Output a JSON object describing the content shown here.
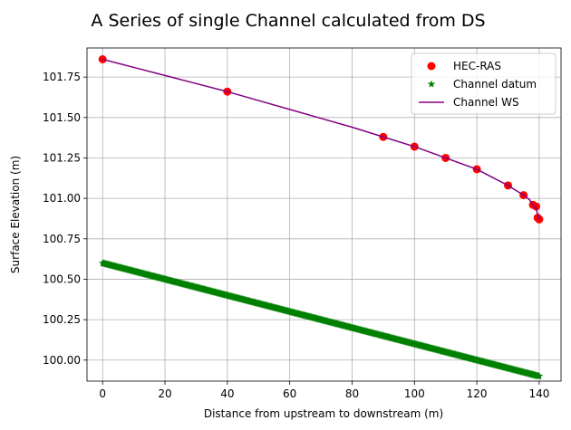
{
  "chart_data": {
    "type": "scatter",
    "title": "A Series of single Channel calculated from DS",
    "xlabel": "Distance from upstream to downstream (m)",
    "ylabel": "Surface Elevation (m)",
    "xlim": [
      -5,
      147
    ],
    "ylim": [
      99.87,
      101.93
    ],
    "xticks": [
      0,
      20,
      40,
      60,
      80,
      100,
      120,
      140
    ],
    "yticks": [
      100.0,
      100.25,
      100.5,
      100.75,
      101.0,
      101.25,
      101.5,
      101.75
    ],
    "xtick_labels": [
      "0",
      "20",
      "40",
      "60",
      "80",
      "100",
      "120",
      "140"
    ],
    "ytick_labels": [
      "100.00",
      "100.25",
      "100.50",
      "100.75",
      "101.00",
      "101.25",
      "101.50",
      "101.75"
    ],
    "grid": true,
    "legend_position": "top-right",
    "series": [
      {
        "name": "HEC-RAS",
        "kind": "scatter",
        "marker": "circle",
        "color": "#ff0000",
        "x": [
          0,
          40,
          90,
          100,
          110,
          120,
          130,
          135,
          138,
          139,
          139.5,
          140
        ],
        "y": [
          101.86,
          101.66,
          101.38,
          101.32,
          101.25,
          101.18,
          101.08,
          101.02,
          100.96,
          100.95,
          100.88,
          100.87
        ]
      },
      {
        "name": "Channel datum",
        "kind": "scatter",
        "marker": "star",
        "color": "#008000",
        "x_start": 0,
        "x_end": 140,
        "x_step": 0.25,
        "y_start": 100.6,
        "y_end": 99.9
      },
      {
        "name": "Channel WS",
        "kind": "line",
        "color": "#800080",
        "x": [
          0,
          10,
          20,
          30,
          40,
          50,
          60,
          70,
          80,
          90,
          100,
          110,
          120,
          125,
          130,
          135,
          137,
          138,
          139,
          139.5,
          140
        ],
        "y": [
          101.86,
          101.81,
          101.76,
          101.71,
          101.66,
          101.605,
          101.55,
          101.495,
          101.44,
          101.38,
          101.32,
          101.25,
          101.18,
          101.13,
          101.08,
          101.02,
          100.99,
          100.96,
          100.94,
          100.9,
          100.87
        ]
      }
    ]
  }
}
